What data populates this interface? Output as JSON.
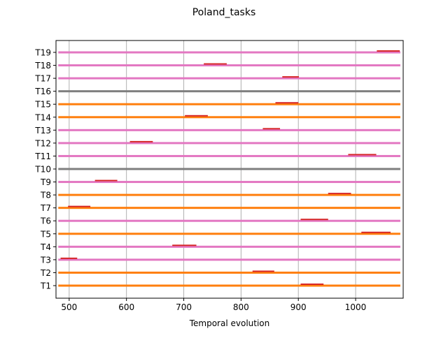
{
  "chart_data": {
    "type": "gantt",
    "title": "Poland_tasks",
    "xlabel": "Temporal evolution",
    "ylabel": "",
    "xlim": [
      477,
      1083
    ],
    "xticks": [
      500,
      600,
      700,
      800,
      900,
      1000
    ],
    "grid": "vertical",
    "task_span": [
      481,
      1078
    ],
    "tasks": [
      {
        "label": "T1",
        "bar_color": "#ff7f0e",
        "highlight": [
          904,
          944
        ]
      },
      {
        "label": "T2",
        "bar_color": "#ff7f0e",
        "highlight": [
          820,
          858
        ]
      },
      {
        "label": "T3",
        "bar_color": "#e377c2",
        "highlight": [
          485,
          514
        ]
      },
      {
        "label": "T4",
        "bar_color": "#e377c2",
        "highlight": [
          680,
          722
        ]
      },
      {
        "label": "T5",
        "bar_color": "#ff7f0e",
        "highlight": [
          1010,
          1061
        ]
      },
      {
        "label": "T6",
        "bar_color": "#e377c2",
        "highlight": [
          904,
          952
        ]
      },
      {
        "label": "T7",
        "bar_color": "#ff7f0e",
        "highlight": [
          498,
          537
        ]
      },
      {
        "label": "T8",
        "bar_color": "#ff7f0e",
        "highlight": [
          952,
          992
        ]
      },
      {
        "label": "T9",
        "bar_color": "#e377c2",
        "highlight": [
          545,
          584
        ]
      },
      {
        "label": "T10",
        "bar_color": "#7f7f7f",
        "highlight": null
      },
      {
        "label": "T11",
        "bar_color": "#e377c2",
        "highlight": [
          987,
          1036
        ]
      },
      {
        "label": "T12",
        "bar_color": "#e377c2",
        "highlight": [
          606,
          646
        ]
      },
      {
        "label": "T13",
        "bar_color": "#e377c2",
        "highlight": [
          838,
          868
        ]
      },
      {
        "label": "T14",
        "bar_color": "#ff7f0e",
        "highlight": [
          702,
          742
        ]
      },
      {
        "label": "T15",
        "bar_color": "#ff7f0e",
        "highlight": [
          860,
          900
        ]
      },
      {
        "label": "T16",
        "bar_color": "#7f7f7f",
        "highlight": null
      },
      {
        "label": "T17",
        "bar_color": "#e377c2",
        "highlight": [
          872,
          901
        ]
      },
      {
        "label": "T18",
        "bar_color": "#e377c2",
        "highlight": [
          735,
          775
        ]
      },
      {
        "label": "T19",
        "bar_color": "#e377c2",
        "highlight": [
          1037,
          1077
        ]
      }
    ],
    "highlight_color": "#d62728"
  }
}
